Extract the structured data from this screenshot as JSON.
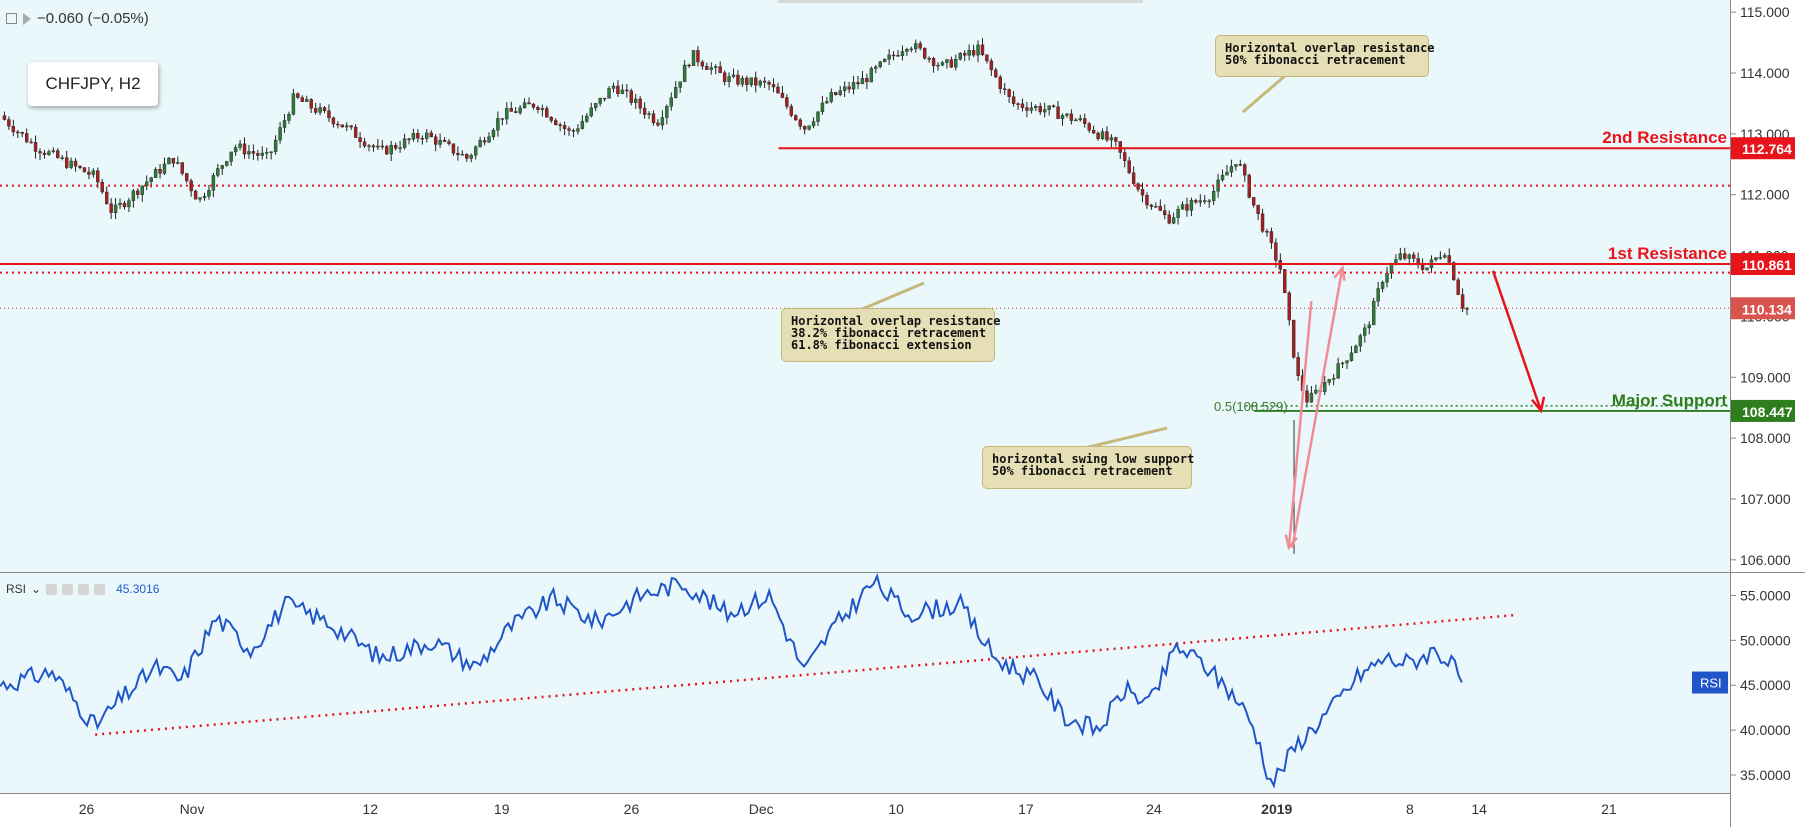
{
  "header": {
    "change": "−0.060 (−0.05%)"
  },
  "symbol": {
    "label": "CHFJPY, H2"
  },
  "colors": {
    "resistance": "#e8141b",
    "support": "#2e7d1e",
    "rsi": "#1f55c8",
    "callout_bg": "#e6dfb6",
    "pane_bg": "#ebf8fb"
  },
  "annotations": {
    "callout_top": [
      "Horizontal overlap resistance",
      "50% fibonacci retracement"
    ],
    "callout_mid": [
      "Horizontal overlap resistance",
      "38.2% fibonacci retracement",
      "61.8% fibonacci extension"
    ],
    "callout_low": [
      "horizontal swing low support",
      "50% fibonacci retracement"
    ],
    "fib_label": "0.5(108.529)",
    "second_resistance": "2nd Resistance",
    "first_resistance": "1st Resistance",
    "major_support": "Major Support"
  },
  "chart_data": [
    {
      "type": "candlestick",
      "title": "CHFJPY, H2",
      "x_ticks": [
        "26",
        "Nov",
        "12",
        "19",
        "26",
        "Dec",
        "10",
        "17",
        "24",
        "2019",
        "8",
        "14",
        "21"
      ],
      "ylim": [
        105.8,
        115.2
      ],
      "y_ticks": [
        "115.000",
        "114.000",
        "113.000",
        "112.000",
        "111.000",
        "110.000",
        "109.000",
        "108.000",
        "107.000",
        "106.000"
      ],
      "levels": [
        {
          "name": "2nd Resistance",
          "value": 112.764,
          "label": "112.764",
          "color": "#e8141b"
        },
        {
          "name": "1st Resistance",
          "value": 110.861,
          "label": "110.861",
          "color": "#e8141b"
        },
        {
          "name": "Current Price",
          "value": 110.134,
          "label": "110.134",
          "color": "#d9534f"
        },
        {
          "name": "Major Support",
          "value": 108.447,
          "label": "108.447",
          "color": "#2e7d1e"
        }
      ],
      "close_path": [
        [
          0,
          113.3
        ],
        [
          0.02,
          112.8
        ],
        [
          0.04,
          112.5
        ],
        [
          0.055,
          112.3
        ],
        [
          0.065,
          111.7
        ],
        [
          0.08,
          112.1
        ],
        [
          0.1,
          112.6
        ],
        [
          0.115,
          111.9
        ],
        [
          0.135,
          112.8
        ],
        [
          0.155,
          112.6
        ],
        [
          0.17,
          113.6
        ],
        [
          0.195,
          113.2
        ],
        [
          0.22,
          112.7
        ],
        [
          0.245,
          113.0
        ],
        [
          0.27,
          112.6
        ],
        [
          0.29,
          113.3
        ],
        [
          0.31,
          113.5
        ],
        [
          0.33,
          113.0
        ],
        [
          0.355,
          113.8
        ],
        [
          0.38,
          113.2
        ],
        [
          0.4,
          114.3
        ],
        [
          0.42,
          113.9
        ],
        [
          0.445,
          113.8
        ],
        [
          0.465,
          113.1
        ],
        [
          0.48,
          113.6
        ],
        [
          0.5,
          113.9
        ],
        [
          0.525,
          114.5
        ],
        [
          0.545,
          114.1
        ],
        [
          0.565,
          114.4
        ],
        [
          0.585,
          113.5
        ],
        [
          0.605,
          113.4
        ],
        [
          0.625,
          113.2
        ],
        [
          0.645,
          112.8
        ],
        [
          0.66,
          112.0
        ],
        [
          0.675,
          111.6
        ],
        [
          0.685,
          111.8
        ],
        [
          0.7,
          112.0
        ],
        [
          0.715,
          112.6
        ],
        [
          0.725,
          111.8
        ],
        [
          0.74,
          110.8
        ],
        [
          0.75,
          109.0
        ],
        [
          0.756,
          108.6
        ],
        [
          0.775,
          109.2
        ],
        [
          0.79,
          109.8
        ],
        [
          0.8,
          110.7
        ],
        [
          0.81,
          111.0
        ],
        [
          0.825,
          110.8
        ],
        [
          0.835,
          111.1
        ],
        [
          0.84,
          110.7
        ],
        [
          0.845,
          110.2
        ],
        [
          0.848,
          110.134
        ]
      ],
      "last": 110.134
    },
    {
      "type": "line",
      "title": "RSI",
      "current_value": "45.3016",
      "ylim": [
        33,
        57.5
      ],
      "y_ticks": [
        "55.0000",
        "50.0000",
        "45.0000",
        "40.0000",
        "35.0000"
      ],
      "series": [
        {
          "name": "RSI",
          "values": [
            [
              0,
              45
            ],
            [
              0.03,
              46.5
            ],
            [
              0.055,
              40.4
            ],
            [
              0.07,
              43.5
            ],
            [
              0.09,
              47
            ],
            [
              0.105,
              45.5
            ],
            [
              0.125,
              52.5
            ],
            [
              0.145,
              49
            ],
            [
              0.165,
              54
            ],
            [
              0.19,
              52
            ],
            [
              0.22,
              48
            ],
            [
              0.25,
              50
            ],
            [
              0.275,
              47
            ],
            [
              0.295,
              51.5
            ],
            [
              0.32,
              54.6
            ],
            [
              0.345,
              52
            ],
            [
              0.37,
              55
            ],
            [
              0.395,
              56.4
            ],
            [
              0.42,
              53
            ],
            [
              0.445,
              55
            ],
            [
              0.465,
              46.5
            ],
            [
              0.48,
              51
            ],
            [
              0.505,
              56.5
            ],
            [
              0.525,
              53
            ],
            [
              0.555,
              54
            ],
            [
              0.575,
              48
            ],
            [
              0.6,
              45.5
            ],
            [
              0.615,
              41.5
            ],
            [
              0.635,
              40
            ],
            [
              0.65,
              44.5
            ],
            [
              0.665,
              43
            ],
            [
              0.68,
              49.3
            ],
            [
              0.695,
              47.5
            ],
            [
              0.715,
              43.5
            ],
            [
              0.725,
              40.2
            ],
            [
              0.735,
              34
            ],
            [
              0.75,
              38.5
            ],
            [
              0.77,
              42.5
            ],
            [
              0.785,
              46
            ],
            [
              0.8,
              48
            ],
            [
              0.815,
              47.5
            ],
            [
              0.83,
              49
            ],
            [
              0.845,
              46
            ]
          ]
        }
      ],
      "trendline": [
        [
          0.055,
          39.5
        ],
        [
          0.875,
          52.8
        ]
      ]
    }
  ]
}
